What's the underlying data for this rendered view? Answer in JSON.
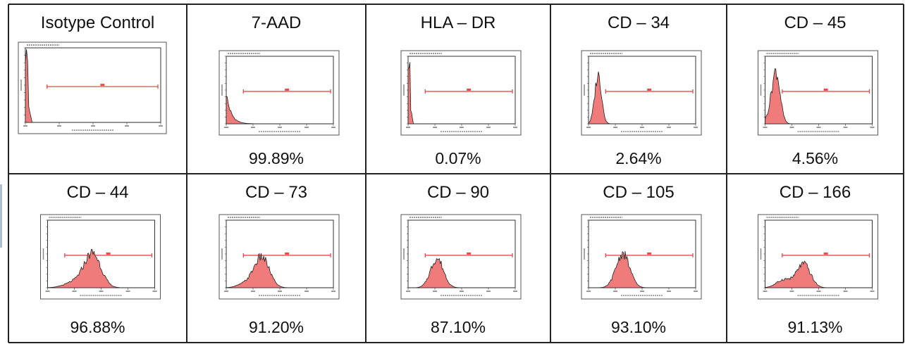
{
  "panels": [
    {
      "title": "Isotype Control",
      "percent": "",
      "shape": "spike"
    },
    {
      "title": "7-AAD",
      "percent": "99.89%",
      "shape": "decay"
    },
    {
      "title": "HLA – DR",
      "percent": "0.07%",
      "shape": "spike"
    },
    {
      "title": "CD – 34",
      "percent": "2.64%",
      "shape": "lowpeak"
    },
    {
      "title": "CD – 45",
      "percent": "4.56%",
      "shape": "lowpeak2"
    },
    {
      "title": "CD – 44",
      "percent": "96.88%",
      "shape": "midpeak"
    },
    {
      "title": "CD – 73",
      "percent": "91.20%",
      "shape": "midpeak2"
    },
    {
      "title": "CD – 90",
      "percent": "87.10%",
      "shape": "bell"
    },
    {
      "title": "CD – 105",
      "percent": "93.10%",
      "shape": "midpeak3"
    },
    {
      "title": "CD – 166",
      "percent": "91.13%",
      "shape": "midpeak4"
    }
  ],
  "chart_data": {
    "type": "area",
    "layout": "grid 2 rows x 5 columns of flow cytometry histograms",
    "x_scale": "log",
    "x_ticks": [
      "10^0",
      "10^1",
      "10^2",
      "10^3",
      "10^4"
    ],
    "colors": {
      "fill": "#f07b7b",
      "outline": "#222222",
      "gate": "#e64a4a",
      "border": "#222222"
    },
    "series": [
      {
        "name": "Isotype Control",
        "positive_percent": null
      },
      {
        "name": "7-AAD",
        "positive_percent": 99.89
      },
      {
        "name": "HLA – DR",
        "positive_percent": 0.07
      },
      {
        "name": "CD – 34",
        "positive_percent": 2.64
      },
      {
        "name": "CD – 45",
        "positive_percent": 4.56
      },
      {
        "name": "CD – 44",
        "positive_percent": 96.88
      },
      {
        "name": "CD – 73",
        "positive_percent": 91.2
      },
      {
        "name": "CD – 90",
        "positive_percent": 87.1
      },
      {
        "name": "CD – 105",
        "positive_percent": 93.1
      },
      {
        "name": "CD – 166",
        "positive_percent": 91.13
      }
    ]
  }
}
